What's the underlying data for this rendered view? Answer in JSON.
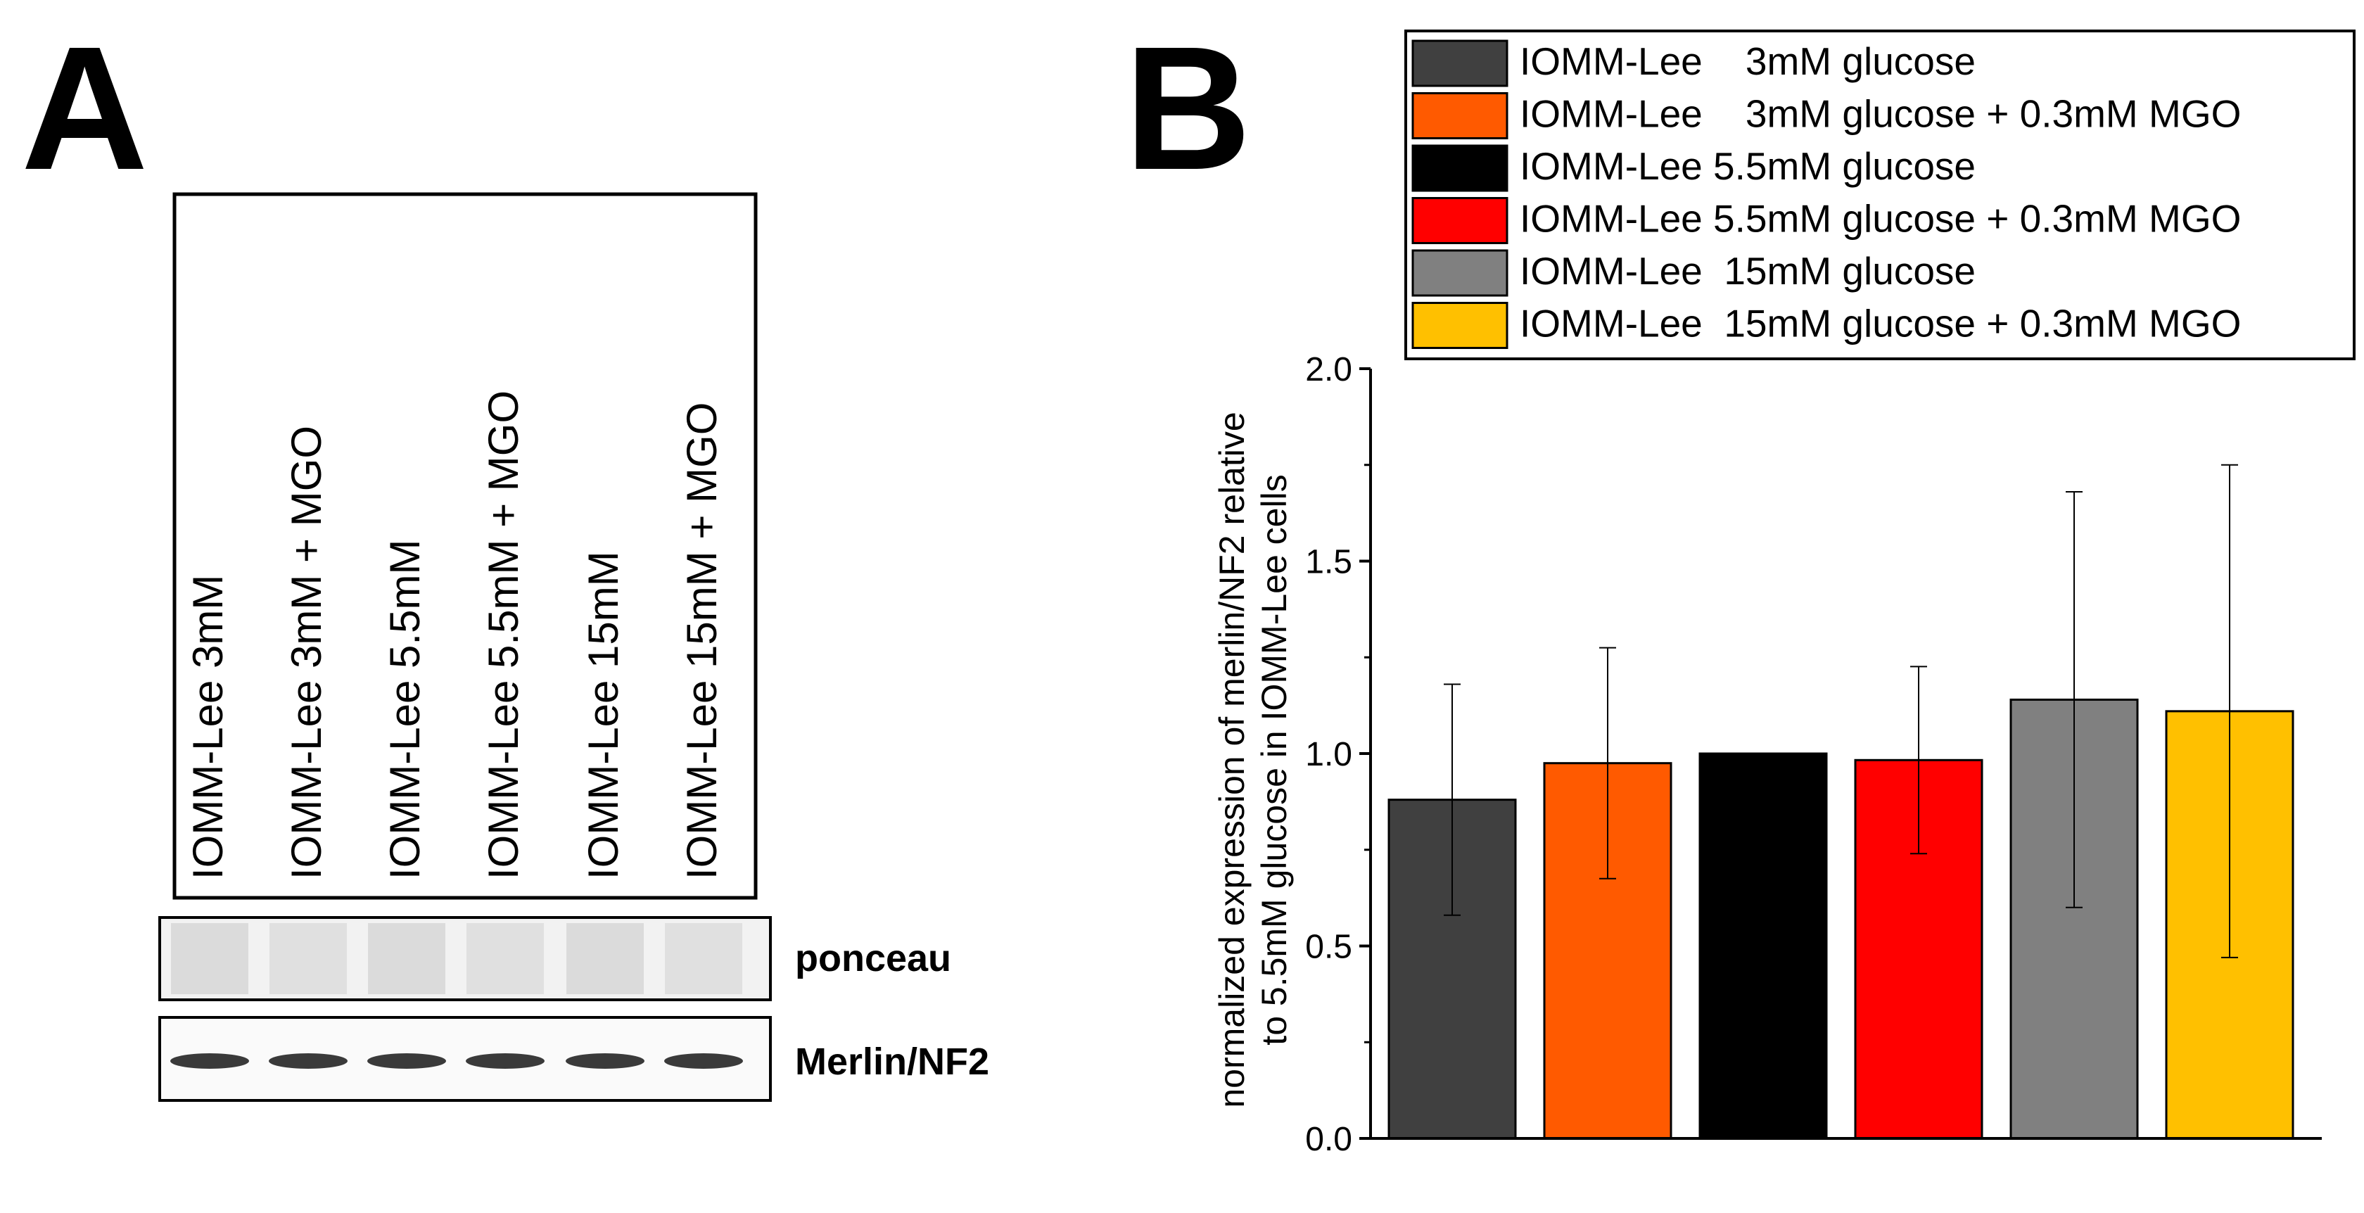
{
  "panel_a": {
    "letter": "A",
    "lane_labels": [
      "IOMM-Lee 3mM",
      "IOMM-Lee 3mM + MGO",
      "IOMM-Lee 5.5mM",
      "IOMM-Lee 5.5mM + MGO",
      "IOMM-Lee 15mM",
      "IOMM-Lee 15mM + MGO"
    ],
    "blots": [
      {
        "label": "ponceau"
      },
      {
        "label": "Merlin/NF2"
      }
    ]
  },
  "panel_b": {
    "letter": "B"
  },
  "chart_data": {
    "type": "bar",
    "title": "",
    "xlabel": "",
    "ylabel_lines": [
      "normalized expression of merlin/NF2 relative",
      "to 5.5mM glucose in IOMM-Lee cells"
    ],
    "ylim": [
      0,
      2.0
    ],
    "yticks": [
      0.0,
      0.5,
      1.0,
      1.5,
      2.0
    ],
    "ytick_labels": [
      "0.0",
      "0.5",
      "1.0",
      "1.5",
      "2.0"
    ],
    "legend_position": "top-right",
    "series": [
      {
        "name": "IOMM-Lee    3mM glucose",
        "value": 0.88,
        "error": 0.3,
        "color": "#404040"
      },
      {
        "name": "IOMM-Lee    3mM glucose + 0.3mM MGO",
        "value": 0.975,
        "error": 0.3,
        "color": "#ff5a00"
      },
      {
        "name": "IOMM-Lee 5.5mM glucose",
        "value": 1.0,
        "error": 0.0,
        "color": "#000000"
      },
      {
        "name": "IOMM-Lee 5.5mM glucose + 0.3mM MGO",
        "value": 0.983,
        "error": 0.243,
        "color": "#ff0000"
      },
      {
        "name": "IOMM-Lee  15mM glucose",
        "value": 1.14,
        "error": 0.54,
        "color": "#808080"
      },
      {
        "name": "IOMM-Lee  15mM glucose + 0.3mM MGO",
        "value": 1.11,
        "error": 0.64,
        "color": "#ffc000"
      }
    ]
  }
}
